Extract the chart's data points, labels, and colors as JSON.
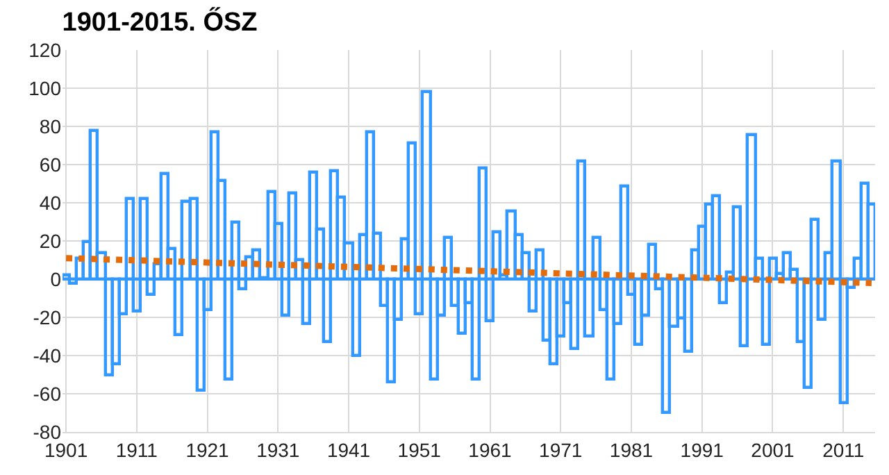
{
  "chart_data": {
    "type": "bar",
    "title": "1901-2015. ŐSZ",
    "x": [
      1901,
      1902,
      1903,
      1904,
      1905,
      1906,
      1907,
      1908,
      1909,
      1910,
      1911,
      1912,
      1913,
      1914,
      1915,
      1916,
      1917,
      1918,
      1919,
      1920,
      1921,
      1922,
      1923,
      1924,
      1925,
      1926,
      1927,
      1928,
      1929,
      1930,
      1931,
      1932,
      1933,
      1934,
      1935,
      1936,
      1937,
      1938,
      1939,
      1940,
      1941,
      1942,
      1943,
      1944,
      1945,
      1946,
      1947,
      1948,
      1949,
      1950,
      1951,
      1952,
      1953,
      1954,
      1955,
      1956,
      1957,
      1958,
      1959,
      1960,
      1961,
      1962,
      1963,
      1964,
      1965,
      1966,
      1967,
      1968,
      1969,
      1970,
      1971,
      1972,
      1973,
      1974,
      1975,
      1976,
      1977,
      1978,
      1979,
      1980,
      1981,
      1982,
      1983,
      1984,
      1985,
      1986,
      1987,
      1988,
      1989,
      1990,
      1991,
      1992,
      1993,
      1994,
      1995,
      1996,
      1997,
      1998,
      1999,
      2000,
      2001,
      2002,
      2003,
      2004,
      2005,
      2006,
      2007,
      2008,
      2009,
      2010,
      2011,
      2012,
      2013,
      2014,
      2015
    ],
    "series": [
      {
        "color": "#3399ff",
        "values": [
          2,
          -2,
          11,
          20,
          78,
          14,
          -50,
          -44,
          -18,
          42,
          -17,
          42,
          -8,
          8,
          55,
          16,
          -29,
          41,
          42,
          -58,
          -16,
          77,
          52,
          -52,
          30,
          -5,
          12,
          15,
          1,
          46,
          29,
          -19,
          45,
          10,
          -23,
          56,
          26,
          -33,
          57,
          43,
          19,
          -40,
          23,
          77,
          24,
          -14,
          -54,
          -21,
          21,
          71,
          -18,
          98,
          -52,
          -19,
          22,
          -14,
          -28,
          -12,
          -52,
          58,
          -22,
          25,
          2,
          36,
          23,
          14,
          -17,
          15,
          -32,
          -44,
          -30,
          -12,
          -36,
          62,
          -30,
          22,
          -16,
          -52,
          -23,
          49,
          -8,
          -34,
          -19,
          18,
          -5,
          -70,
          -25,
          -20,
          -38,
          15,
          28,
          39,
          44,
          -12,
          4,
          38,
          -35,
          76,
          11,
          -34,
          11,
          3,
          14,
          5,
          -33,
          -57,
          31,
          -21,
          14,
          62,
          -65,
          -4,
          11,
          50,
          39
        ]
      },
      {
        "type": "line",
        "color": "#e46c0a",
        "x": [
          1901,
          2015
        ],
        "values": [
          11,
          -2
        ],
        "line_style": "dotted"
      }
    ],
    "xlim": [
      1900.5,
      2015.5
    ],
    "xticks": [
      1901,
      1911,
      1921,
      1931,
      1941,
      1951,
      1961,
      1971,
      1981,
      1991,
      2001,
      2011
    ],
    "ylim": [
      -80,
      120
    ],
    "yticks": [
      -80,
      -60,
      -40,
      -20,
      0,
      20,
      40,
      60,
      80,
      100,
      120
    ],
    "grid": true
  }
}
